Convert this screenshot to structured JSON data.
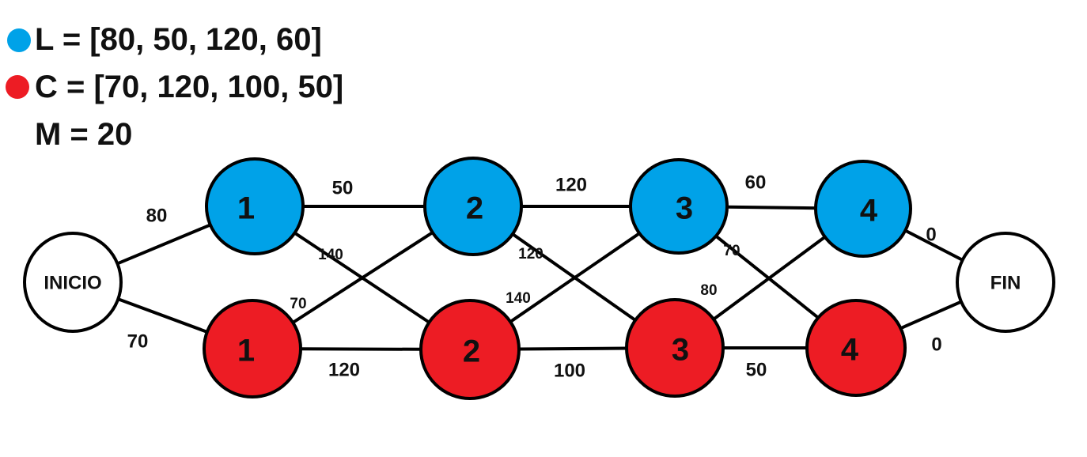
{
  "legend": {
    "line_l": "L = [80, 50, 120, 60]",
    "line_c": "C = [70, 120, 100, 50]",
    "line_m": "M = 20",
    "blue_color": "#00A2E8",
    "red_color": "#ED1C24"
  },
  "nodes": [
    {
      "id": "inicio",
      "label": "INICIO",
      "kind": "terminal"
    },
    {
      "id": "b1",
      "label": "1",
      "kind": "blue"
    },
    {
      "id": "b2",
      "label": "2",
      "kind": "blue"
    },
    {
      "id": "b3",
      "label": "3",
      "kind": "blue"
    },
    {
      "id": "b4",
      "label": "4",
      "kind": "blue"
    },
    {
      "id": "r1",
      "label": "1",
      "kind": "red"
    },
    {
      "id": "r2",
      "label": "2",
      "kind": "red"
    },
    {
      "id": "r3",
      "label": "3",
      "kind": "red"
    },
    {
      "id": "r4",
      "label": "4",
      "kind": "red"
    },
    {
      "id": "fin",
      "label": "FIN",
      "kind": "terminal"
    }
  ],
  "edges": [
    {
      "from": "inicio",
      "to": "b1",
      "weight": "80"
    },
    {
      "from": "inicio",
      "to": "r1",
      "weight": "70"
    },
    {
      "from": "b1",
      "to": "b2",
      "weight": "50"
    },
    {
      "from": "b1",
      "to": "r2",
      "weight": "140"
    },
    {
      "from": "r1",
      "to": "b2",
      "weight": "70"
    },
    {
      "from": "r1",
      "to": "r2",
      "weight": "120"
    },
    {
      "from": "b2",
      "to": "b3",
      "weight": "120"
    },
    {
      "from": "b2",
      "to": "r3",
      "weight": "120"
    },
    {
      "from": "r2",
      "to": "b3",
      "weight": "140"
    },
    {
      "from": "r2",
      "to": "r3",
      "weight": "100"
    },
    {
      "from": "b3",
      "to": "b4",
      "weight": "60"
    },
    {
      "from": "b3",
      "to": "r4",
      "weight": "70"
    },
    {
      "from": "r3",
      "to": "b4",
      "weight": "80"
    },
    {
      "from": "r3",
      "to": "r4",
      "weight": "50"
    },
    {
      "from": "b4",
      "to": "fin",
      "weight": "0"
    },
    {
      "from": "r4",
      "to": "fin",
      "weight": "0"
    }
  ]
}
